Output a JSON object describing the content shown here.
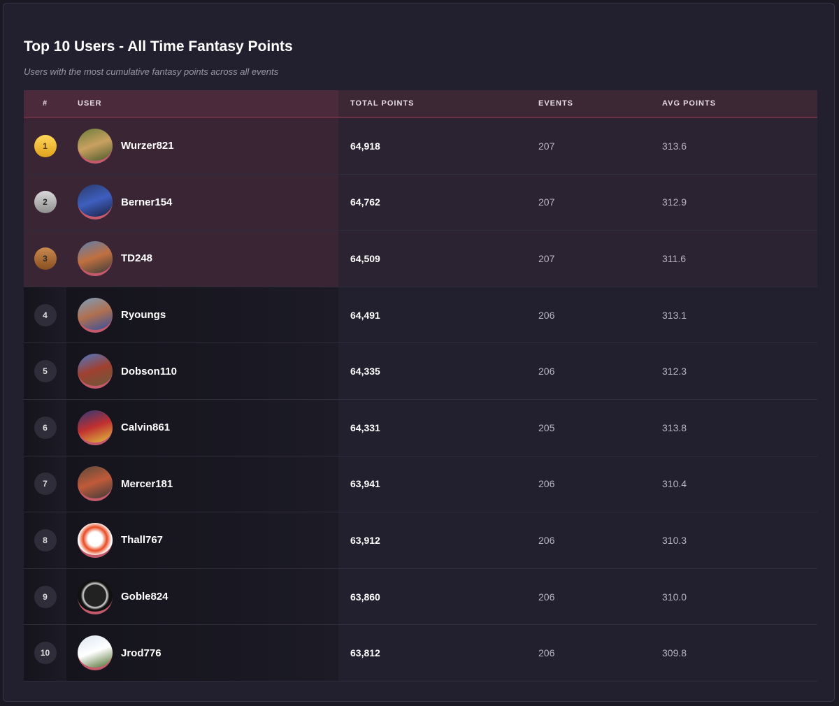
{
  "header": {
    "title": "Top 10 Users - All Time Fantasy Points",
    "subtitle": "Users with the most cumulative fantasy points across all events"
  },
  "table": {
    "columns": [
      "#",
      "USER",
      "TOTAL POINTS",
      "EVENTS",
      "AVG POINTS"
    ],
    "rows": [
      [
        "1",
        "Wurzer821",
        "64,918",
        "207",
        "313.6"
      ],
      [
        "2",
        "Berner154",
        "64,762",
        "207",
        "312.9"
      ],
      [
        "3",
        "TD248",
        "64,509",
        "207",
        "311.6"
      ],
      [
        "4",
        "Ryoungs",
        "64,491",
        "206",
        "313.1"
      ],
      [
        "5",
        "Dobson110",
        "64,335",
        "206",
        "312.3"
      ],
      [
        "6",
        "Calvin861",
        "64,331",
        "205",
        "313.8"
      ],
      [
        "7",
        "Mercer181",
        "63,941",
        "206",
        "310.4"
      ],
      [
        "8",
        "Thall767",
        "63,912",
        "206",
        "310.3"
      ],
      [
        "9",
        "Goble824",
        "63,860",
        "206",
        "310.0"
      ],
      [
        "10",
        "Jrod776",
        "63,812",
        "206",
        "309.8"
      ]
    ]
  }
}
